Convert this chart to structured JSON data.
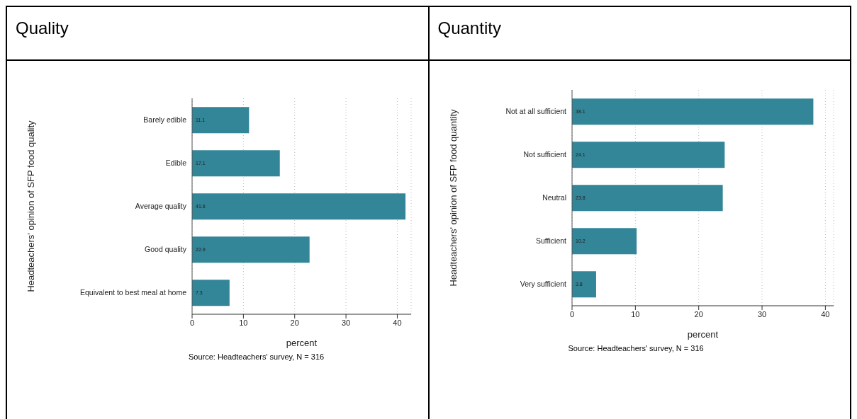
{
  "chart_data": [
    {
      "type": "bar",
      "orientation": "horizontal",
      "title": "Quality",
      "ylabel": "Headteachers' opinion of SFP food quality",
      "xlabel": "percent",
      "categories": [
        "Barely edible",
        "Edible",
        "Average quality",
        "Good quality",
        "Equivalent to best meal at home"
      ],
      "values": [
        11.1,
        17.1,
        41.6,
        22.9,
        7.3
      ],
      "color": "#338598",
      "data_labels": true,
      "xlim": [
        0,
        42.7
      ],
      "xticks": [
        0,
        10,
        20,
        30,
        40
      ],
      "grid": "x",
      "annotations": [
        "Source: Headteachers' survey, N = 316"
      ]
    },
    {
      "type": "bar",
      "orientation": "horizontal",
      "title": "Quantity",
      "ylabel": "Headteachers' opinion of SFP food quantity",
      "xlabel": "percent",
      "categories": [
        "Not at all sufficient",
        "Not sufficient",
        "Neutral",
        "Sufficient",
        "Very sufficient"
      ],
      "values": [
        38.1,
        24.1,
        23.8,
        10.2,
        3.8
      ],
      "color": "#338598",
      "data_labels": true,
      "xlim": [
        0,
        41.3
      ],
      "xticks": [
        0,
        10,
        20,
        30,
        40
      ],
      "grid": "x",
      "annotations": [
        "Source: Headteachers' survey, N = 316"
      ]
    }
  ]
}
